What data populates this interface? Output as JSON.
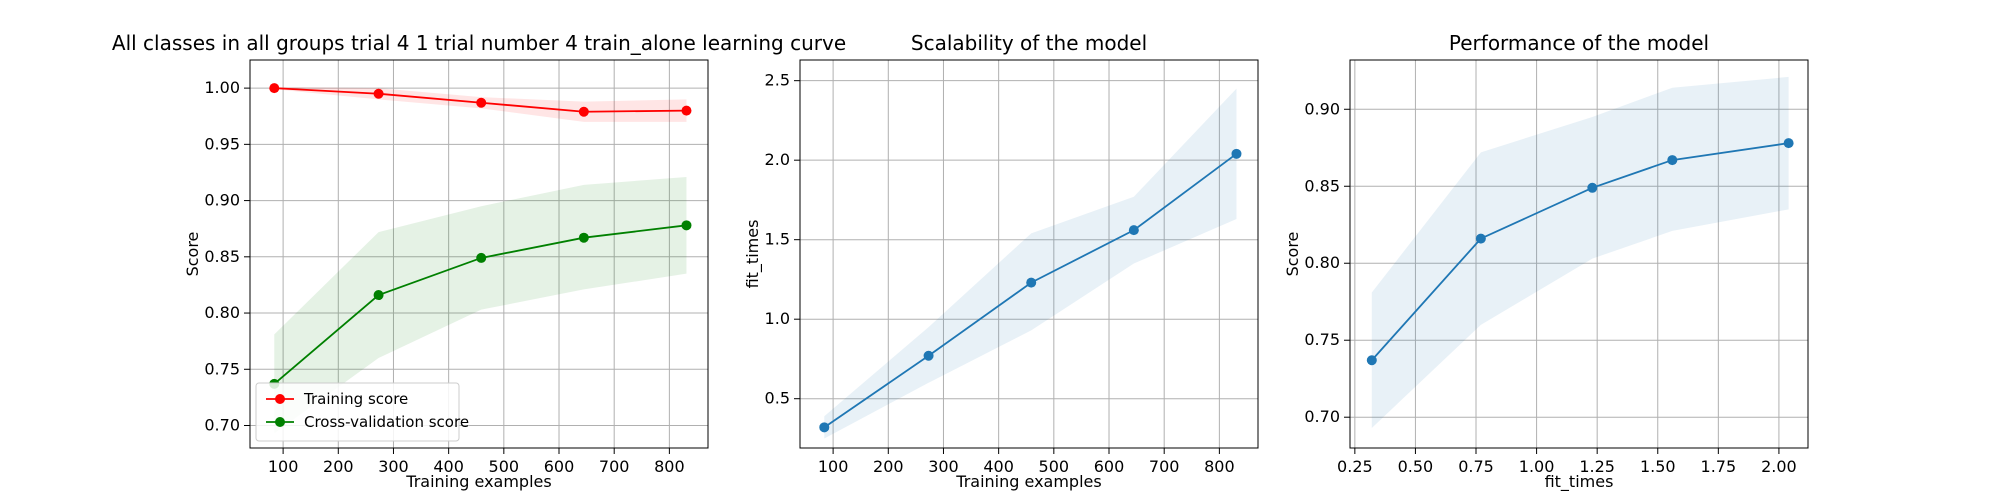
{
  "chart_data": [
    {
      "type": "line",
      "title": "All classes in all groups trial 4 1 trial number 4 train_alone learning curve",
      "xlabel": "Training examples",
      "ylabel": "Score",
      "xlim": [
        40,
        870
      ],
      "ylim": [
        0.68,
        1.025
      ],
      "x_ticks": [
        100,
        200,
        300,
        400,
        500,
        600,
        700,
        800
      ],
      "y_ticks": [
        0.7,
        0.75,
        0.8,
        0.85,
        0.9,
        0.95,
        1.0
      ],
      "y_tick_decimals": 2,
      "grid": true,
      "legend_position": "lower-left",
      "series": [
        {
          "name": "Training score",
          "color": "#ff0000",
          "x": [
            84,
            273,
            459,
            645,
            831
          ],
          "y": [
            1.0,
            0.995,
            0.987,
            0.979,
            0.98
          ],
          "band_lower": [
            0.999,
            0.99,
            0.982,
            0.97,
            0.97
          ],
          "band_upper": [
            1.001,
            1.0,
            0.992,
            0.988,
            0.99
          ]
        },
        {
          "name": "Cross-validation score",
          "color": "#008000",
          "x": [
            84,
            273,
            459,
            645,
            831
          ],
          "y": [
            0.737,
            0.816,
            0.849,
            0.867,
            0.878
          ],
          "band_lower": [
            0.693,
            0.76,
            0.803,
            0.821,
            0.835
          ],
          "band_upper": [
            0.781,
            0.872,
            0.895,
            0.914,
            0.921
          ]
        }
      ]
    },
    {
      "type": "line",
      "title": "Scalability of the model",
      "xlabel": "Training examples",
      "ylabel": "fit_times",
      "xlim": [
        40,
        870
      ],
      "ylim": [
        0.19,
        2.63
      ],
      "x_ticks": [
        100,
        200,
        300,
        400,
        500,
        600,
        700,
        800
      ],
      "y_ticks": [
        0.5,
        1.0,
        1.5,
        2.0,
        2.5
      ],
      "y_tick_decimals": 1,
      "grid": true,
      "series": [
        {
          "color": "#1f77b4",
          "x": [
            84,
            273,
            459,
            645,
            831
          ],
          "y": [
            0.32,
            0.77,
            1.23,
            1.56,
            2.04
          ],
          "band_lower": [
            0.25,
            0.6,
            0.93,
            1.35,
            1.63
          ],
          "band_upper": [
            0.39,
            0.95,
            1.54,
            1.77,
            2.45
          ]
        }
      ]
    },
    {
      "type": "line",
      "title": "Performance of the model",
      "xlabel": "fit_times",
      "ylabel": "Score",
      "xlim": [
        0.23,
        2.12
      ],
      "ylim": [
        0.68,
        0.932
      ],
      "x_ticks": [
        0.25,
        0.5,
        0.75,
        1.0,
        1.25,
        1.5,
        1.75,
        2.0
      ],
      "x_tick_decimals": 2,
      "y_ticks": [
        0.7,
        0.75,
        0.8,
        0.85,
        0.9
      ],
      "y_tick_decimals": 2,
      "grid": true,
      "series": [
        {
          "color": "#1f77b4",
          "x": [
            0.32,
            0.77,
            1.23,
            1.56,
            2.04
          ],
          "y": [
            0.737,
            0.816,
            0.849,
            0.867,
            0.878
          ],
          "band_lower": [
            0.693,
            0.76,
            0.803,
            0.821,
            0.835
          ],
          "band_upper": [
            0.781,
            0.872,
            0.895,
            0.914,
            0.921
          ]
        }
      ]
    }
  ]
}
